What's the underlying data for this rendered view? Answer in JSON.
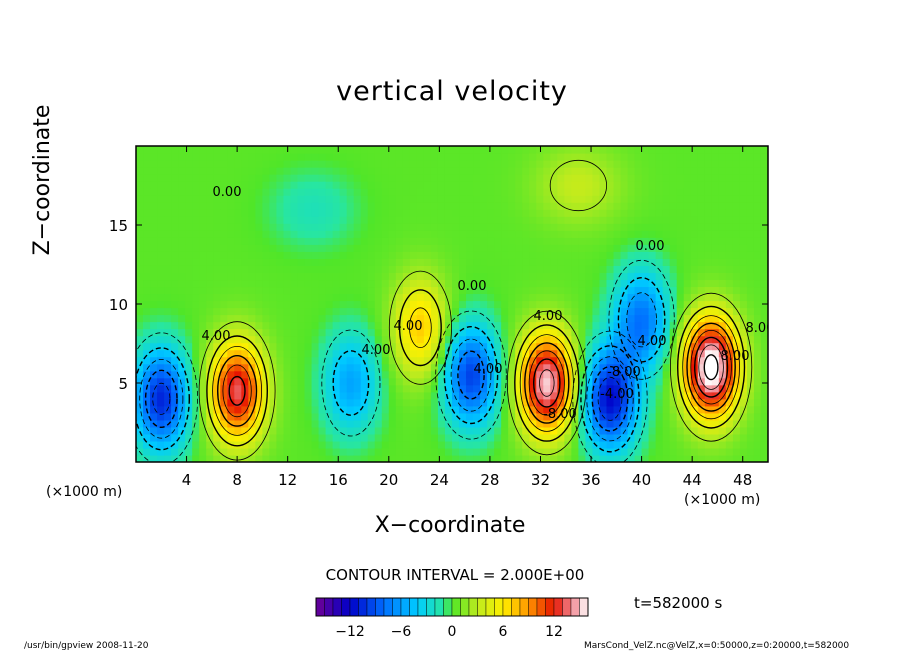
{
  "chart_data": {
    "type": "heatmap",
    "title": "vertical velocity",
    "xlabel": "X−coordinate",
    "ylabel": "Z−coordinate",
    "x_unit": "(×1000 m)",
    "xlim": [
      0,
      50
    ],
    "ylim": [
      0,
      20
    ],
    "x_ticks": [
      4,
      8,
      12,
      16,
      20,
      24,
      28,
      32,
      36,
      40,
      44,
      48
    ],
    "y_ticks": [
      5,
      10,
      15
    ],
    "contour_interval_label": "CONTOUR INTERVAL = 2.000E+00",
    "time_label": "t=582000 s",
    "colorbar": {
      "range": [
        -16,
        16
      ],
      "ticks": [
        -12,
        -6,
        0,
        6,
        12
      ],
      "tick_labels": [
        "−12",
        "−6",
        "0",
        "6",
        "12"
      ]
    },
    "contour_labels": [
      "0.00",
      "4.00",
      "4.00",
      "4.00",
      "4.00",
      "4.00",
      "-4.00",
      "-8.00",
      "8.00",
      "0.00",
      "-8.00",
      "0.00",
      "4.00",
      "8.00"
    ],
    "features": [
      {
        "x": 8,
        "z": 4.5,
        "peak": 13,
        "sign": "up"
      },
      {
        "x": 2,
        "z": 4,
        "peak": -11,
        "sign": "down"
      },
      {
        "x": 17,
        "z": 5,
        "peak": -6,
        "sign": "down"
      },
      {
        "x": 22.5,
        "z": 8.5,
        "peak": 7,
        "sign": "up"
      },
      {
        "x": 26.5,
        "z": 5.5,
        "peak": -10,
        "sign": "down"
      },
      {
        "x": 32.5,
        "z": 5,
        "peak": 15,
        "sign": "up"
      },
      {
        "x": 37.5,
        "z": 4,
        "peak": -12,
        "sign": "down"
      },
      {
        "x": 40,
        "z": 9,
        "peak": -8,
        "sign": "down"
      },
      {
        "x": 45.5,
        "z": 6,
        "peak": 17,
        "sign": "up"
      },
      {
        "x": 35,
        "z": 17.5,
        "peak": 3,
        "sign": "up"
      },
      {
        "x": 14,
        "z": 16,
        "peak": -2,
        "sign": "down"
      }
    ]
  },
  "footer": {
    "left": "/usr/bin/gpview  2008-11-20",
    "right": "MarsCond_VelZ.nc@VelZ,x=0:50000,z=0:20000,t=582000"
  }
}
